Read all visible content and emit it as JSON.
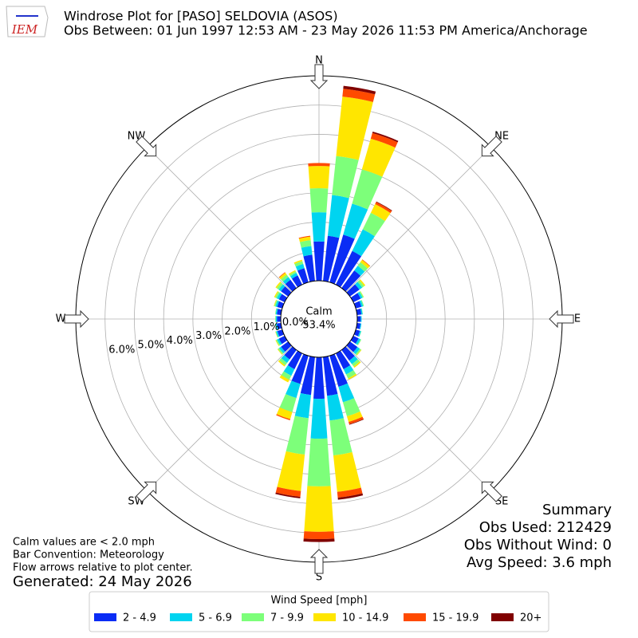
{
  "logo": "IEM",
  "chart_data": {
    "type": "windrose",
    "title": "Windrose Plot for [PASO] SELDOVIA (ASOS)",
    "subtitle": "Obs Between: 01 Jun 1997 12:53 AM - 23 May 2026 11:53 PM America/Anchorage",
    "x": [
      0,
      10,
      20,
      30,
      40,
      50,
      60,
      70,
      80,
      90,
      100,
      110,
      120,
      130,
      140,
      150,
      160,
      170,
      180,
      190,
      200,
      210,
      220,
      230,
      240,
      250,
      260,
      270,
      280,
      290,
      300,
      310,
      320,
      330,
      340,
      350
    ],
    "compass_labels": [
      "N",
      "NE",
      "E",
      "SE",
      "S",
      "SW",
      "W",
      "NW"
    ],
    "calm_label": "Calm",
    "calm_value": 53.4,
    "calm_value_label": "53.4%",
    "ylim": [
      0,
      7
    ],
    "yticks": [
      {
        "value": 0,
        "label": "0.0%"
      },
      {
        "value": 1,
        "label": "1.0%"
      },
      {
        "value": 2,
        "label": "2.0%"
      },
      {
        "value": 3,
        "label": "3.0%"
      },
      {
        "value": 4,
        "label": "4.0%"
      },
      {
        "value": 5,
        "label": "5.0%"
      },
      {
        "value": 6,
        "label": "6.0%"
      }
    ],
    "grid": true,
    "legend_title": "Wind Speed [mph]",
    "series": [
      {
        "name": "2 - 4.9",
        "color": "#0a2cf5",
        "values": [
          1.34,
          1.55,
          1.69,
          1.28,
          0.74,
          0.4,
          0.28,
          0.2,
          0.15,
          0.12,
          0.12,
          0.15,
          0.2,
          0.32,
          0.45,
          0.6,
          1.1,
          1.33,
          1.42,
          1.3,
          1.0,
          0.6,
          0.4,
          0.3,
          0.22,
          0.17,
          0.14,
          0.13,
          0.14,
          0.18,
          0.22,
          0.3,
          0.35,
          0.35,
          0.5,
          0.9
        ]
      },
      {
        "name": "5 - 6.9",
        "color": "#00d4f0",
        "values": [
          1.0,
          1.4,
          1.1,
          0.82,
          0.2,
          0.12,
          0.07,
          0.06,
          0.04,
          0.03,
          0.03,
          0.04,
          0.07,
          0.1,
          0.15,
          0.2,
          0.55,
          0.85,
          1.36,
          0.8,
          0.5,
          0.25,
          0.15,
          0.08,
          0.07,
          0.05,
          0.04,
          0.04,
          0.04,
          0.06,
          0.08,
          0.1,
          0.12,
          0.1,
          0.15,
          0.3
        ]
      },
      {
        "name": "7 - 9.9",
        "color": "#7dff7a",
        "values": [
          0.82,
          1.34,
          1.22,
          0.63,
          0.15,
          0.08,
          0.04,
          0.03,
          0.01,
          0,
          0,
          0.01,
          0.03,
          0.05,
          0.1,
          0.15,
          0.5,
          1.2,
          1.63,
          1.25,
          0.5,
          0.15,
          0.1,
          0.05,
          0.04,
          0.02,
          0.02,
          0.02,
          0.02,
          0.04,
          0.06,
          0.08,
          0.1,
          0.06,
          0.1,
          0.2
        ]
      },
      {
        "name": "10 - 14.9",
        "color": "#ffe600",
        "values": [
          0.76,
          2.04,
          1.09,
          0.33,
          0.1,
          0.05,
          0.01,
          0,
          0,
          0,
          0,
          0,
          0,
          0.02,
          0.05,
          0.05,
          0.2,
          1.25,
          1.55,
          1.25,
          0.25,
          0.1,
          0.05,
          0.02,
          0.02,
          0.01,
          0,
          0,
          0,
          0.02,
          0.04,
          0.05,
          0.08,
          0.04,
          0.05,
          0.12
        ]
      },
      {
        "name": "15 - 19.9",
        "color": "#ff4a00",
        "values": [
          0.1,
          0.27,
          0.2,
          0.08,
          0.02,
          0,
          0,
          0,
          0,
          0,
          0,
          0,
          0,
          0,
          0,
          0,
          0.08,
          0.2,
          0.25,
          0.2,
          0.04,
          0,
          0,
          0,
          0,
          0,
          0,
          0,
          0,
          0,
          0,
          0,
          0.02,
          0,
          0,
          0.03
        ]
      },
      {
        "name": "20+",
        "color": "#800000",
        "values": [
          0,
          0.1,
          0.05,
          0.02,
          0,
          0,
          0,
          0,
          0,
          0,
          0,
          0,
          0,
          0,
          0,
          0,
          0.02,
          0.07,
          0.1,
          0.05,
          0,
          0,
          0,
          0,
          0,
          0,
          0,
          0,
          0,
          0,
          0,
          0,
          0,
          0,
          0,
          0
        ]
      }
    ]
  },
  "notes": [
    "Calm values are < 2.0 mph",
    "Bar Convention: Meteorology",
    "Flow arrows relative to plot center."
  ],
  "generated": "Generated: 24 May 2026",
  "summary": [
    "Summary",
    "Obs Used: 212429",
    "Obs Without Wind: 0",
    "Avg Speed: 3.6 mph"
  ]
}
